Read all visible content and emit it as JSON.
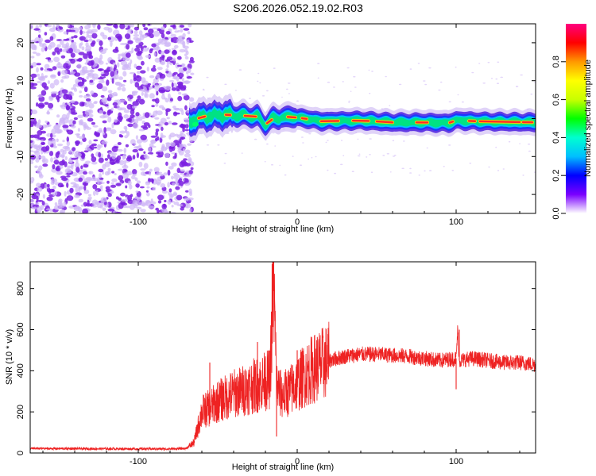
{
  "title": "S206.2026.052.19.02.R03",
  "colors": {
    "snr_line": "#ee2222",
    "speckle_dark": "#7a1ee0",
    "speckle_light": "#ceb6f6",
    "ridge_core": "#ff2a2a"
  },
  "chart_data": [
    {
      "type": "heatmap",
      "xlabel": "Height of straight line (km)",
      "ylabel": "Frequency (Hz)",
      "xlim": [
        -168,
        150
      ],
      "ylim": [
        -25,
        25
      ],
      "xticks": [
        -100,
        0,
        100
      ],
      "xtick_labels": [
        "-100",
        "0",
        "100"
      ],
      "yticks": [
        20,
        10,
        0,
        -10,
        -20
      ],
      "ytick_labels": [
        "20",
        "10",
        "0",
        "-10",
        "-20"
      ],
      "noise_region_x": [
        -168,
        -68
      ],
      "signal_region_x": [
        -68,
        150
      ],
      "ridge_frequency": [
        {
          "x": -68,
          "y": -1.0
        },
        {
          "x": -60,
          "y": 0.5
        },
        {
          "x": -45,
          "y": 1.0
        },
        {
          "x": -35,
          "y": 0.8
        },
        {
          "x": -25,
          "y": 0.5
        },
        {
          "x": -20,
          "y": -1.5
        },
        {
          "x": -15,
          "y": 0.0
        },
        {
          "x": -5,
          "y": 0.5
        },
        {
          "x": 5,
          "y": 0.0
        },
        {
          "x": 15,
          "y": -0.7
        },
        {
          "x": 40,
          "y": -0.5
        },
        {
          "x": 60,
          "y": -1.0
        },
        {
          "x": 80,
          "y": -1.0
        },
        {
          "x": 95,
          "y": -1.2
        },
        {
          "x": 100,
          "y": -0.5
        },
        {
          "x": 120,
          "y": -0.8
        },
        {
          "x": 150,
          "y": -1.0
        }
      ],
      "colorbar": {
        "label": "Normalized spectral amplitude",
        "range": [
          0,
          1
        ],
        "ticks": [
          0.0,
          0.2,
          0.4,
          0.6,
          0.8
        ],
        "tick_labels": [
          "0.0",
          "0.2",
          "0.4",
          "0.6",
          "0.8"
        ],
        "colormap": [
          "#ffffff",
          "#7a00ff",
          "#0000ff",
          "#00bfff",
          "#00ffd0",
          "#00ff00",
          "#c8ff00",
          "#ffff00",
          "#ff9900",
          "#ff0000",
          "#ff0080"
        ]
      }
    },
    {
      "type": "line",
      "xlabel": "Height of straight line (km)",
      "ylabel": "SNR (10 * v/v)",
      "xlim": [
        -168,
        150
      ],
      "ylim": [
        0,
        930
      ],
      "xticks": [
        -100,
        0,
        100
      ],
      "xtick_labels": [
        "-100",
        "0",
        "100"
      ],
      "yticks": [
        0,
        200,
        400,
        600,
        800
      ],
      "ytick_labels": [
        "0",
        "200",
        "400",
        "600",
        "800"
      ],
      "series": [
        {
          "x": [
            -168,
            -140,
            -100,
            -80,
            -70,
            -65,
            -62,
            -60,
            -55,
            -50,
            -45,
            -40,
            -35,
            -30,
            -25,
            -20,
            -17,
            -15,
            -13,
            -10,
            -5,
            0,
            5,
            10,
            20,
            30,
            40,
            50,
            60,
            70,
            80,
            90,
            100,
            101,
            102,
            110,
            120,
            130,
            140,
            150
          ],
          "y": [
            22,
            21,
            20,
            20,
            22,
            50,
            140,
            200,
            220,
            250,
            270,
            290,
            300,
            320,
            330,
            350,
            360,
            920,
            330,
            280,
            300,
            340,
            380,
            410,
            450,
            470,
            480,
            480,
            475,
            470,
            460,
            450,
            460,
            600,
            450,
            460,
            450,
            440,
            440,
            430
          ],
          "spikes": [
            {
              "x": -55,
              "y": 440
            },
            {
              "x": -25,
              "y": 540
            },
            {
              "x": -20,
              "y": 470
            },
            {
              "x": -15,
              "y": 920
            },
            {
              "x": -13,
              "y": 80
            },
            {
              "x": 0,
              "y": 500
            },
            {
              "x": 100,
              "y": 310
            },
            {
              "x": 102,
              "y": 600
            }
          ]
        }
      ]
    }
  ]
}
